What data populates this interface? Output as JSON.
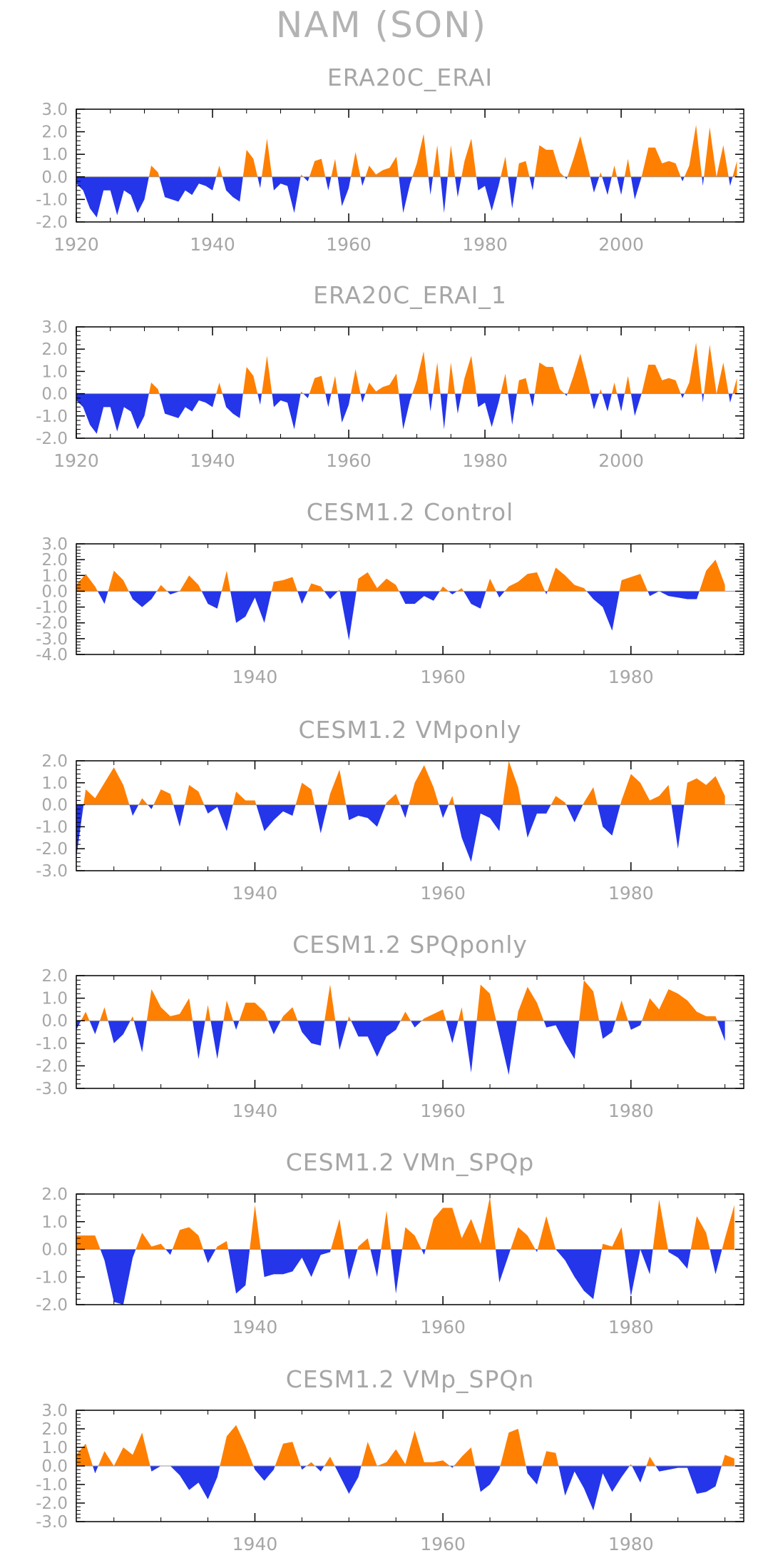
{
  "title": "NAM (SON)",
  "colors": {
    "positive": "#ff7f00",
    "negative": "#2435ea",
    "text": "#a6a6a6",
    "frame": "#000000"
  },
  "chart_data": [
    {
      "type": "area",
      "title": "ERA20C_ERAI",
      "xlim": [
        1920,
        2018
      ],
      "ylim": [
        -2.0,
        3.0
      ],
      "y_ticks": [
        "3.0",
        "2.0",
        "1.0",
        "0.0",
        "-1.0",
        "-2.0"
      ],
      "y_tick_values": [
        3,
        2,
        1,
        0,
        -1,
        -2
      ],
      "x_ticks": [
        "1920",
        "1940",
        "1960",
        "1980",
        "2000"
      ],
      "x_tick_values": [
        1920,
        1940,
        1960,
        1980,
        2000
      ],
      "x_start": 1920,
      "values": [
        -0.3,
        -0.6,
        -1.4,
        -1.8,
        -0.6,
        -0.6,
        -1.7,
        -0.6,
        -0.8,
        -1.6,
        -1.0,
        0.5,
        0.2,
        -0.9,
        -1.0,
        -1.1,
        -0.6,
        -0.8,
        -0.3,
        -0.4,
        -0.6,
        0.5,
        -0.6,
        -0.9,
        -1.1,
        1.2,
        0.8,
        -0.5,
        1.7,
        -0.6,
        -0.3,
        -0.4,
        -1.6,
        0.1,
        -0.2,
        0.7,
        0.8,
        -0.6,
        0.8,
        -1.3,
        -0.5,
        1.1,
        -0.4,
        0.5,
        0.1,
        0.3,
        0.4,
        0.9,
        -1.6,
        -0.3,
        0.6,
        1.9,
        -0.8,
        1.4,
        -1.6,
        1.4,
        -0.9,
        0.7,
        1.7,
        -0.6,
        -0.4,
        -1.5,
        -0.4,
        0.9,
        -1.4,
        0.6,
        0.7,
        -0.6,
        1.4,
        1.2,
        1.2,
        0.2,
        -0.1,
        0.8,
        1.8,
        0.6,
        -0.7,
        0.2,
        -0.8,
        0.5,
        -0.8,
        0.8,
        -1.0,
        0.0,
        1.3,
        1.3,
        0.6,
        0.7,
        0.6,
        -0.2,
        0.5,
        2.3,
        -0.4,
        2.2,
        0.0,
        1.4,
        -0.4,
        0.7
      ]
    },
    {
      "type": "area",
      "title": "ERA20C_ERAI_1",
      "xlim": [
        1920,
        2018
      ],
      "ylim": [
        -2.0,
        3.0
      ],
      "y_ticks": [
        "3.0",
        "2.0",
        "1.0",
        "0.0",
        "-1.0",
        "-2.0"
      ],
      "y_tick_values": [
        3,
        2,
        1,
        0,
        -1,
        -2
      ],
      "x_ticks": [
        "1920",
        "1940",
        "1960",
        "1980",
        "2000"
      ],
      "x_tick_values": [
        1920,
        1940,
        1960,
        1980,
        2000
      ],
      "x_start": 1920,
      "values": [
        -0.3,
        -0.6,
        -1.4,
        -1.8,
        -0.6,
        -0.6,
        -1.7,
        -0.6,
        -0.8,
        -1.6,
        -1.0,
        0.5,
        0.2,
        -0.9,
        -1.0,
        -1.1,
        -0.6,
        -0.8,
        -0.3,
        -0.4,
        -0.6,
        0.5,
        -0.6,
        -0.9,
        -1.1,
        1.2,
        0.8,
        -0.5,
        1.7,
        -0.6,
        -0.3,
        -0.4,
        -1.6,
        0.1,
        -0.2,
        0.7,
        0.8,
        -0.6,
        0.8,
        -1.3,
        -0.5,
        1.1,
        -0.4,
        0.5,
        0.1,
        0.3,
        0.4,
        0.9,
        -1.6,
        -0.3,
        0.6,
        1.9,
        -0.8,
        1.4,
        -1.6,
        1.4,
        -0.9,
        0.7,
        1.7,
        -0.6,
        -0.4,
        -1.5,
        -0.4,
        0.9,
        -1.4,
        0.6,
        0.7,
        -0.6,
        1.4,
        1.2,
        1.2,
        0.2,
        -0.1,
        0.8,
        1.8,
        0.6,
        -0.7,
        0.2,
        -0.8,
        0.5,
        -0.8,
        0.8,
        -1.0,
        0.0,
        1.3,
        1.3,
        0.6,
        0.7,
        0.6,
        -0.2,
        0.5,
        2.3,
        -0.4,
        2.2,
        0.0,
        1.4,
        -0.4,
        0.7
      ]
    },
    {
      "type": "area",
      "title": "CESM1.2 Control",
      "xlim": [
        1921,
        1992
      ],
      "ylim": [
        -4.0,
        3.0
      ],
      "y_ticks": [
        "3.0",
        "2.0",
        "1.0",
        "0.0",
        "-1.0",
        "-2.0",
        "-3.0",
        "-4.0"
      ],
      "y_tick_values": [
        3,
        2,
        1,
        0,
        -1,
        -2,
        -3,
        -4
      ],
      "x_ticks": [
        "1940",
        "1960",
        "1980"
      ],
      "x_tick_values": [
        1940,
        1960,
        1980
      ],
      "x_start": 1921,
      "values": [
        0.4,
        1.1,
        0.3,
        -0.8,
        1.3,
        0.7,
        -0.5,
        -1.0,
        -0.5,
        0.4,
        -0.2,
        0.0,
        1.0,
        0.4,
        -0.8,
        -1.1,
        1.3,
        -2.0,
        -1.6,
        -0.4,
        -2.0,
        0.6,
        0.7,
        0.9,
        -0.8,
        0.5,
        0.3,
        -0.5,
        0.1,
        -3.1,
        0.8,
        1.2,
        0.2,
        0.8,
        0.4,
        -0.8,
        -0.8,
        -0.3,
        -0.6,
        0.3,
        -0.2,
        0.2,
        -0.8,
        -1.1,
        0.8,
        -0.4,
        0.3,
        0.6,
        1.1,
        1.2,
        -0.2,
        1.5,
        1.0,
        0.4,
        0.2,
        -0.5,
        -1.0,
        -2.5,
        0.7,
        0.9,
        1.1,
        -0.3,
        0.0,
        -0.3,
        -0.4,
        -0.5,
        -0.5,
        1.3,
        2.0,
        0.4
      ]
    },
    {
      "type": "area",
      "title": "CESM1.2 VMponly",
      "xlim": [
        1921,
        1992
      ],
      "ylim": [
        -3.0,
        2.0
      ],
      "y_ticks": [
        "2.0",
        "1.0",
        "0.0",
        "-1.0",
        "-2.0",
        "-3.0"
      ],
      "y_tick_values": [
        2,
        1,
        0,
        -1,
        -2,
        -3
      ],
      "x_ticks": [
        "1940",
        "1960",
        "1980"
      ],
      "x_tick_values": [
        1940,
        1960,
        1980
      ],
      "x_start": 1921,
      "values": [
        -2.4,
        0.7,
        0.3,
        1.0,
        1.7,
        0.9,
        -0.5,
        0.3,
        -0.2,
        0.7,
        0.5,
        -1.0,
        0.9,
        0.6,
        -0.4,
        -0.1,
        -1.2,
        0.6,
        0.2,
        0.2,
        -1.2,
        -0.7,
        -0.3,
        -0.5,
        1.0,
        0.7,
        -1.3,
        0.5,
        1.6,
        -0.7,
        -0.5,
        -0.6,
        -1.0,
        0.1,
        0.5,
        -0.6,
        1.0,
        1.8,
        0.8,
        -0.6,
        0.4,
        -1.5,
        -2.6,
        -0.4,
        -0.6,
        -1.2,
        2.0,
        0.8,
        -1.5,
        -0.4,
        -0.4,
        0.4,
        0.1,
        -0.8,
        0.1,
        0.8,
        -1.0,
        -1.4,
        0.2,
        1.4,
        1.0,
        0.2,
        0.4,
        0.9,
        -2.0,
        1.0,
        1.2,
        0.9,
        1.3,
        0.4
      ]
    },
    {
      "type": "area",
      "title": "CESM1.2 SPQponly",
      "xlim": [
        1921,
        1992
      ],
      "ylim": [
        -3.0,
        2.0
      ],
      "y_ticks": [
        "2.0",
        "1.0",
        "0.0",
        "-1.0",
        "-2.0",
        "-3.0"
      ],
      "y_tick_values": [
        2,
        1,
        0,
        -1,
        -2,
        -3
      ],
      "x_ticks": [
        "1940",
        "1960",
        "1980"
      ],
      "x_tick_values": [
        1940,
        1960,
        1980
      ],
      "x_start": 1921,
      "values": [
        -0.4,
        0.4,
        -0.6,
        0.6,
        -1.0,
        -0.6,
        0.2,
        -1.4,
        1.4,
        0.6,
        0.2,
        0.3,
        1.0,
        -1.7,
        0.7,
        -1.7,
        0.9,
        -0.4,
        0.8,
        0.8,
        0.4,
        -0.6,
        0.2,
        0.6,
        -0.5,
        -1.0,
        -1.1,
        1.6,
        -1.3,
        0.2,
        -0.7,
        -0.7,
        -1.6,
        -0.7,
        -0.4,
        0.4,
        -0.3,
        0.1,
        0.3,
        0.5,
        -1.0,
        0.6,
        -2.3,
        1.6,
        1.2,
        -0.6,
        -2.4,
        0.4,
        1.5,
        0.8,
        -0.3,
        -0.2,
        -1.0,
        -1.7,
        1.8,
        1.3,
        -0.8,
        -0.5,
        0.9,
        -0.4,
        -0.2,
        1.0,
        0.5,
        1.4,
        1.2,
        0.9,
        0.4,
        0.2,
        0.2,
        -0.9
      ]
    },
    {
      "type": "area",
      "title": "CESM1.2 VMn_SPQp",
      "xlim": [
        1921,
        1992
      ],
      "ylim": [
        -2.0,
        2.0
      ],
      "y_ticks": [
        "2.0",
        "1.0",
        "0.0",
        "-1.0",
        "-2.0"
      ],
      "y_tick_values": [
        2,
        1,
        0,
        -1,
        -2
      ],
      "x_ticks": [
        "1940",
        "1960",
        "1980"
      ],
      "x_tick_values": [
        1940,
        1960,
        1980
      ],
      "x_start": 1921,
      "values": [
        0.5,
        0.5,
        0.5,
        -0.4,
        -1.9,
        -2.0,
        -0.3,
        0.6,
        0.1,
        0.2,
        -0.2,
        0.7,
        0.8,
        0.5,
        -0.5,
        0.1,
        0.3,
        -1.6,
        -1.3,
        1.6,
        -1.0,
        -0.9,
        -0.9,
        -0.8,
        -0.3,
        -1.0,
        -0.2,
        -0.1,
        1.1,
        -1.1,
        0.1,
        0.4,
        -1.0,
        1.4,
        -1.6,
        0.8,
        0.5,
        -0.2,
        1.1,
        1.5,
        1.5,
        0.4,
        1.1,
        0.2,
        1.9,
        -1.2,
        -0.2,
        0.8,
        0.5,
        -0.1,
        1.2,
        0.0,
        -0.4,
        -1.0,
        -1.5,
        -1.8,
        0.2,
        0.1,
        0.8,
        -1.7,
        0.0,
        -0.9,
        1.8,
        -0.1,
        -0.3,
        -0.7,
        1.2,
        0.6,
        -0.9,
        0.4,
        1.6
      ]
    },
    {
      "type": "area",
      "title": "CESM1.2 VMp_SPQn",
      "xlim": [
        1921,
        1992
      ],
      "ylim": [
        -3.0,
        3.0
      ],
      "y_ticks": [
        "3.0",
        "2.0",
        "1.0",
        "0.0",
        "-1.0",
        "-2.0",
        "-3.0"
      ],
      "y_tick_values": [
        3,
        2,
        1,
        0,
        -1,
        -2,
        -3
      ],
      "x_ticks": [
        "1940",
        "1960",
        "1980"
      ],
      "x_tick_values": [
        1940,
        1960,
        1980
      ],
      "x_start": 1921,
      "values": [
        0.6,
        1.2,
        -0.4,
        0.8,
        0.0,
        1.0,
        0.6,
        1.8,
        -0.3,
        0.0,
        0.0,
        -0.5,
        -1.3,
        -0.9,
        -1.8,
        -0.6,
        1.6,
        2.2,
        1.1,
        -0.2,
        -0.8,
        -0.2,
        1.2,
        1.3,
        -0.2,
        0.2,
        -0.3,
        0.5,
        -0.5,
        -1.5,
        -0.6,
        1.3,
        0.0,
        0.2,
        0.9,
        0.1,
        1.9,
        0.2,
        0.2,
        0.3,
        -0.1,
        0.5,
        1.0,
        -1.4,
        -1.0,
        -0.2,
        1.8,
        2.0,
        -0.4,
        -1.0,
        0.8,
        0.7,
        -1.6,
        -0.3,
        -1.2,
        -2.4,
        -0.4,
        -1.4,
        -0.6,
        0.1,
        -0.9,
        0.5,
        -0.3,
        -0.2,
        -0.1,
        -0.1,
        -1.5,
        -1.4,
        -1.1,
        0.6,
        0.4
      ]
    }
  ]
}
